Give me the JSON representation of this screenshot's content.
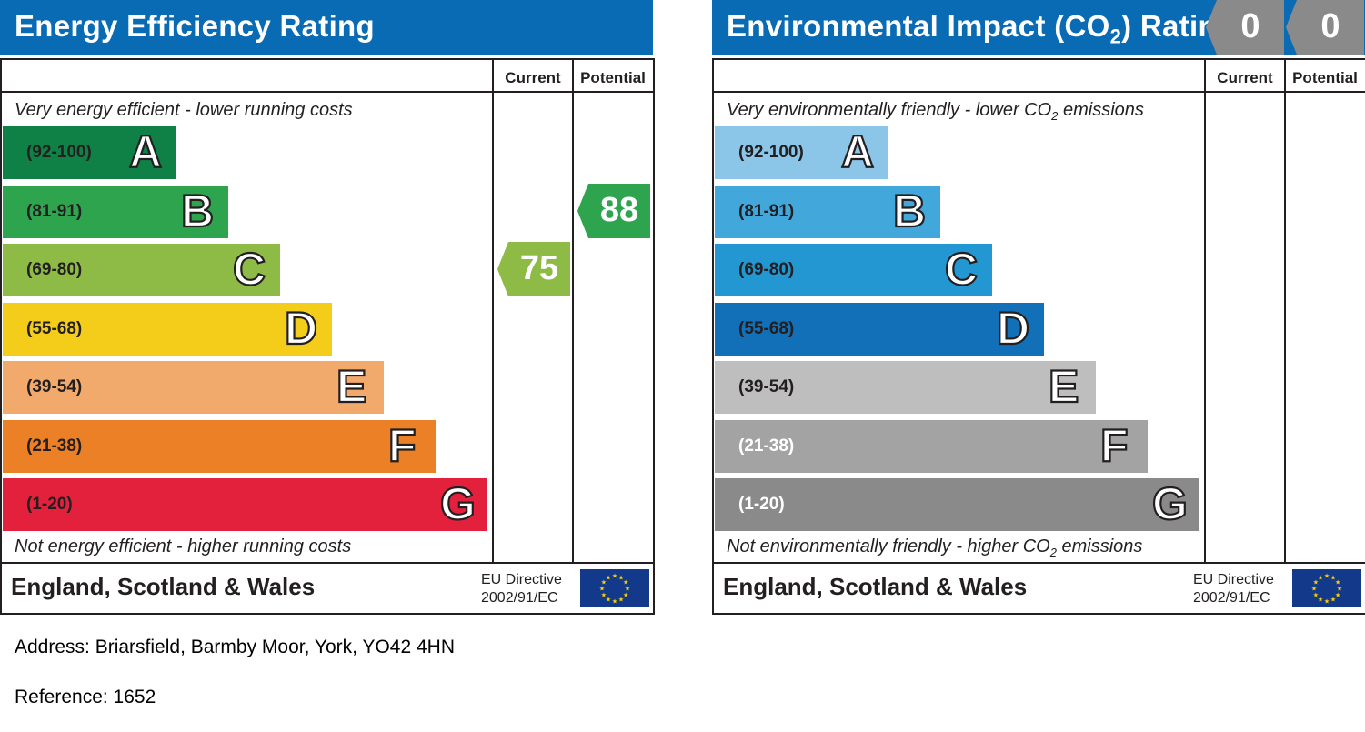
{
  "chart_data": [
    {
      "type": "table",
      "title": "Energy Efficiency Rating",
      "columns": [
        "Current",
        "Potential"
      ],
      "top_caption": "Very energy efficient - lower running costs",
      "bottom_caption": "Not energy efficient - higher running costs",
      "bands": [
        {
          "letter": "A",
          "range": "(92-100)",
          "color": "#0f8147"
        },
        {
          "letter": "B",
          "range": "(81-91)",
          "color": "#2ea44f"
        },
        {
          "letter": "C",
          "range": "(69-80)",
          "color": "#8dbb45"
        },
        {
          "letter": "D",
          "range": "(55-68)",
          "color": "#f4cd1a"
        },
        {
          "letter": "E",
          "range": "(39-54)",
          "color": "#f2a96c"
        },
        {
          "letter": "F",
          "range": "(21-38)",
          "color": "#ec8026"
        },
        {
          "letter": "G",
          "range": "(1-20)",
          "color": "#e3213c"
        }
      ],
      "current": {
        "value": "75",
        "band": "C",
        "color": "#8dbb45"
      },
      "potential": {
        "value": "88",
        "band": "B",
        "color": "#2ea44f"
      },
      "region": "England, Scotland & Wales",
      "directive": [
        "EU Directive",
        "2002/91/EC"
      ]
    },
    {
      "type": "table",
      "title_main": "Environmental Impact (CO",
      "title_sub": "2",
      "title_tail": ") Rating",
      "columns": [
        "Current",
        "Potential"
      ],
      "top_caption_main": "Very environmentally friendly - lower CO",
      "top_caption_sub": "2",
      "top_caption_tail": " emissions",
      "bottom_caption_main": "Not environmentally friendly - higher CO",
      "bottom_caption_sub": "2",
      "bottom_caption_tail": " emissions",
      "bands": [
        {
          "letter": "A",
          "range": "(92-100)",
          "color": "#8bc6e8"
        },
        {
          "letter": "B",
          "range": "(81-91)",
          "color": "#42a8dc"
        },
        {
          "letter": "C",
          "range": "(69-80)",
          "color": "#2397d2"
        },
        {
          "letter": "D",
          "range": "(55-68)",
          "color": "#1170b8"
        },
        {
          "letter": "E",
          "range": "(39-54)",
          "color": "#bebebe"
        },
        {
          "letter": "F",
          "range": "(21-38)",
          "color": "#a3a3a3"
        },
        {
          "letter": "G",
          "range": "(1-20)",
          "color": "#8a8a8a"
        }
      ],
      "current": {
        "value": "0",
        "color": "#8a8a8a"
      },
      "potential": {
        "value": "0",
        "color": "#8a8a8a"
      },
      "region": "England, Scotland & Wales",
      "directive": [
        "EU Directive",
        "2002/91/EC"
      ]
    }
  ],
  "info": {
    "address": "Address: Briarsfield, Barmby Moor, York, YO42 4HN",
    "reference": "Reference: 1652"
  }
}
